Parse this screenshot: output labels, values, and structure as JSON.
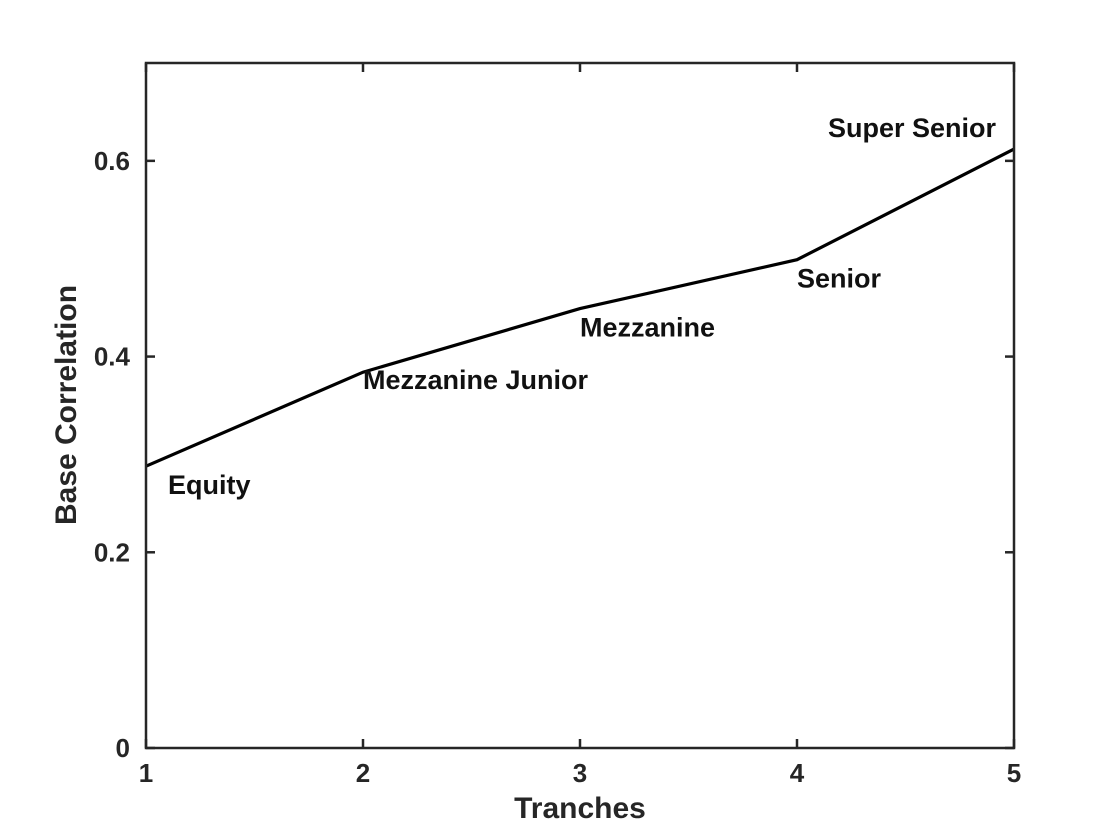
{
  "chart_data": {
    "type": "line",
    "title": "",
    "xlabel": "Tranches",
    "ylabel": "Base Correlation",
    "xlim": [
      1,
      5
    ],
    "ylim": [
      0,
      0.7
    ],
    "xticks": [
      1,
      2,
      3,
      4,
      5
    ],
    "xtick_labels": [
      "1",
      "2",
      "3",
      "4",
      "5"
    ],
    "yticks": [
      0,
      0.2,
      0.4,
      0.6
    ],
    "ytick_labels": [
      "0",
      "0.2",
      "0.4",
      "0.6"
    ],
    "grid": false,
    "box": true,
    "line_color": "#000000",
    "series": [
      {
        "x": [
          1,
          2,
          3,
          4,
          5
        ],
        "values": [
          0.288,
          0.384,
          0.449,
          0.499,
          0.612
        ]
      }
    ],
    "annotations": [
      {
        "text": "Equity",
        "x": 1,
        "y": 0.288
      },
      {
        "text": "Mezzanine Junior",
        "x": 2,
        "y": 0.384
      },
      {
        "text": "Mezzanine",
        "x": 3,
        "y": 0.449
      },
      {
        "text": "Senior",
        "x": 4,
        "y": 0.499
      },
      {
        "text": "Super Senior",
        "x": 5,
        "y": 0.612
      }
    ]
  }
}
